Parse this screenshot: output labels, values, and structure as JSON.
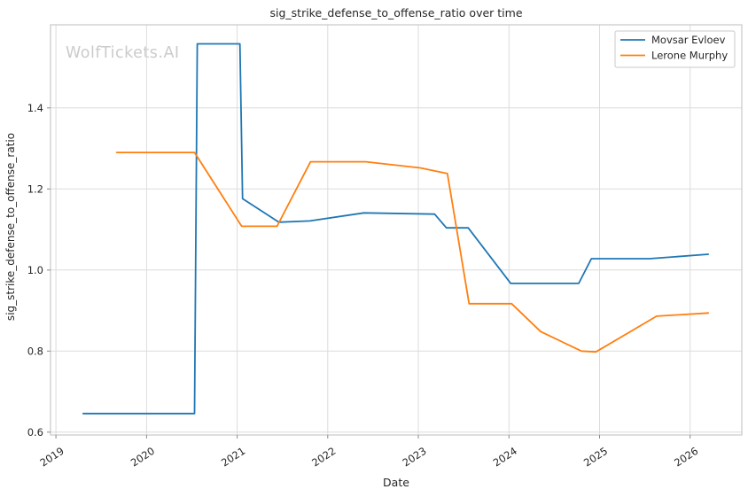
{
  "watermark": "WolfTickets.AI",
  "chart_data": {
    "type": "line",
    "title": "sig_strike_defense_to_offense_ratio over time",
    "xlabel": "Date",
    "ylabel": "sig_strike_defense_to_offense_ratio",
    "grid": true,
    "legend_position": "upper right",
    "xlim": [
      2018.94,
      2026.57
    ],
    "ylim": [
      0.593,
      1.605
    ],
    "x_ticks": [
      2019,
      2020,
      2021,
      2022,
      2023,
      2024,
      2025,
      2026
    ],
    "x_tick_labels": [
      "2019",
      "2020",
      "2021",
      "2022",
      "2023",
      "2024",
      "2025",
      "2026"
    ],
    "y_ticks": [
      0.6,
      0.8,
      1.0,
      1.2,
      1.4
    ],
    "y_tick_labels": [
      "0.6",
      "0.8",
      "1.0",
      "1.2",
      "1.4"
    ],
    "colors": {
      "grid": "#dcdcdc",
      "spine": "#c9c9c9",
      "tick": "#8a8a8a",
      "text": "#262626",
      "watermark": "#cbcbcb",
      "background": "#ffffff"
    },
    "series": [
      {
        "name": "Movsar Evloev",
        "color": "#1f77b4",
        "points": [
          [
            2019.3,
            0.646
          ],
          [
            2020.53,
            0.646
          ],
          [
            2020.56,
            1.558
          ],
          [
            2021.03,
            1.558
          ],
          [
            2021.06,
            1.176
          ],
          [
            2021.46,
            1.118
          ],
          [
            2021.8,
            1.121
          ],
          [
            2022.4,
            1.141
          ],
          [
            2023.18,
            1.138
          ],
          [
            2023.31,
            1.104
          ],
          [
            2023.55,
            1.104
          ],
          [
            2024.02,
            0.967
          ],
          [
            2024.77,
            0.967
          ],
          [
            2024.91,
            1.028
          ],
          [
            2025.55,
            1.028
          ],
          [
            2026.2,
            1.039
          ]
        ]
      },
      {
        "name": "Lerone Murphy",
        "color": "#ff7f0e",
        "points": [
          [
            2019.67,
            1.29
          ],
          [
            2020.53,
            1.29
          ],
          [
            2021.05,
            1.108
          ],
          [
            2021.44,
            1.108
          ],
          [
            2021.81,
            1.267
          ],
          [
            2022.42,
            1.267
          ],
          [
            2023.02,
            1.252
          ],
          [
            2023.32,
            1.238
          ],
          [
            2023.56,
            0.917
          ],
          [
            2024.03,
            0.917
          ],
          [
            2024.35,
            0.848
          ],
          [
            2024.8,
            0.8
          ],
          [
            2024.96,
            0.798
          ],
          [
            2025.63,
            0.886
          ],
          [
            2026.2,
            0.894
          ]
        ]
      }
    ]
  }
}
